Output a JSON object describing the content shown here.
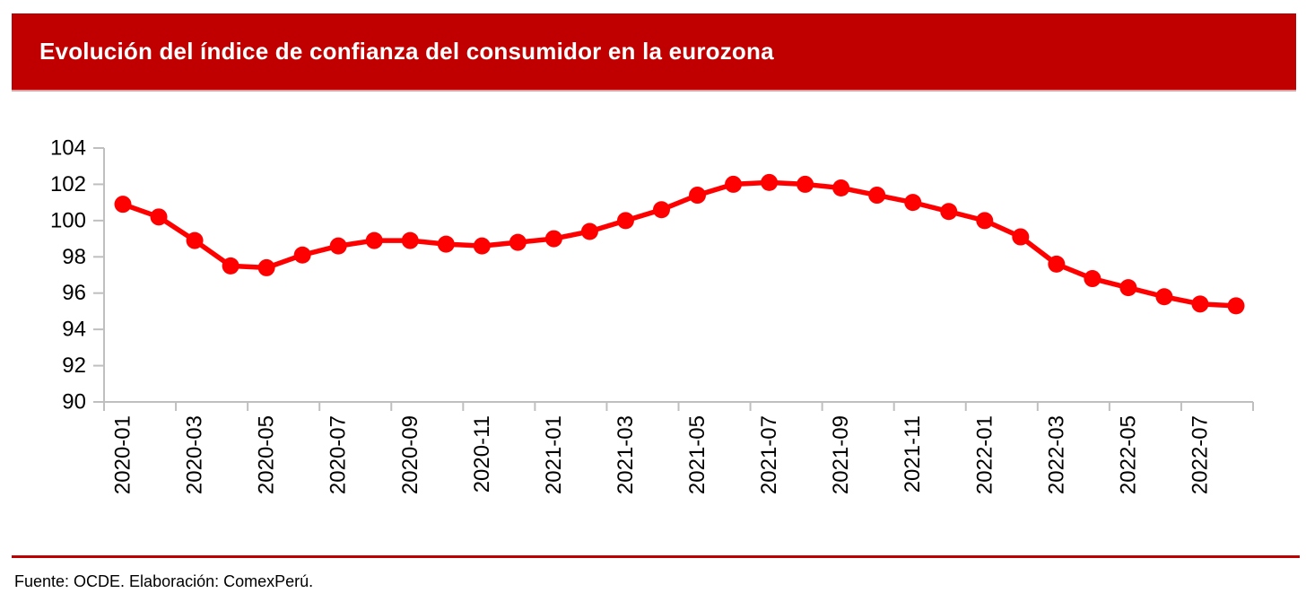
{
  "header": {
    "title": "Evolución del índice de confianza del consumidor en la eurozona"
  },
  "footer": {
    "source": "Fuente: OCDE. Elaboración: ComexPerú."
  },
  "colors": {
    "banner": "#C00000",
    "separator": "#C00000",
    "line": "#FF0000",
    "marker": "#FF0000",
    "axis": "#BFBFBF",
    "text": "#000000"
  },
  "chart_data": {
    "type": "line",
    "title": "Evolución del índice de confianza del consumidor en la eurozona",
    "xlabel": "",
    "ylabel": "",
    "ylim": [
      90,
      104
    ],
    "ytick_step": 2,
    "xtick_every": 2,
    "grid": false,
    "legend": "none",
    "marker": "circle",
    "categories": [
      "2020-01",
      "2020-02",
      "2020-03",
      "2020-04",
      "2020-05",
      "2020-06",
      "2020-07",
      "2020-08",
      "2020-09",
      "2020-10",
      "2020-11",
      "2020-12",
      "2021-01",
      "2021-02",
      "2021-03",
      "2021-04",
      "2021-05",
      "2021-06",
      "2021-07",
      "2021-08",
      "2021-09",
      "2021-10",
      "2021-11",
      "2021-12",
      "2022-01",
      "2022-02",
      "2022-03",
      "2022-04",
      "2022-05",
      "2022-06",
      "2022-07",
      "2022-08"
    ],
    "series": [
      {
        "name": "Índice de confianza del consumidor (eurozona)",
        "values": [
          100.9,
          100.2,
          98.9,
          97.5,
          97.4,
          98.1,
          98.6,
          98.9,
          98.9,
          98.7,
          98.6,
          98.8,
          99.0,
          99.4,
          100.0,
          100.6,
          101.4,
          102.0,
          102.1,
          102.0,
          101.8,
          101.4,
          101.0,
          100.5,
          100.0,
          99.1,
          97.6,
          96.8,
          96.3,
          95.8,
          95.4,
          95.3
        ]
      }
    ]
  }
}
